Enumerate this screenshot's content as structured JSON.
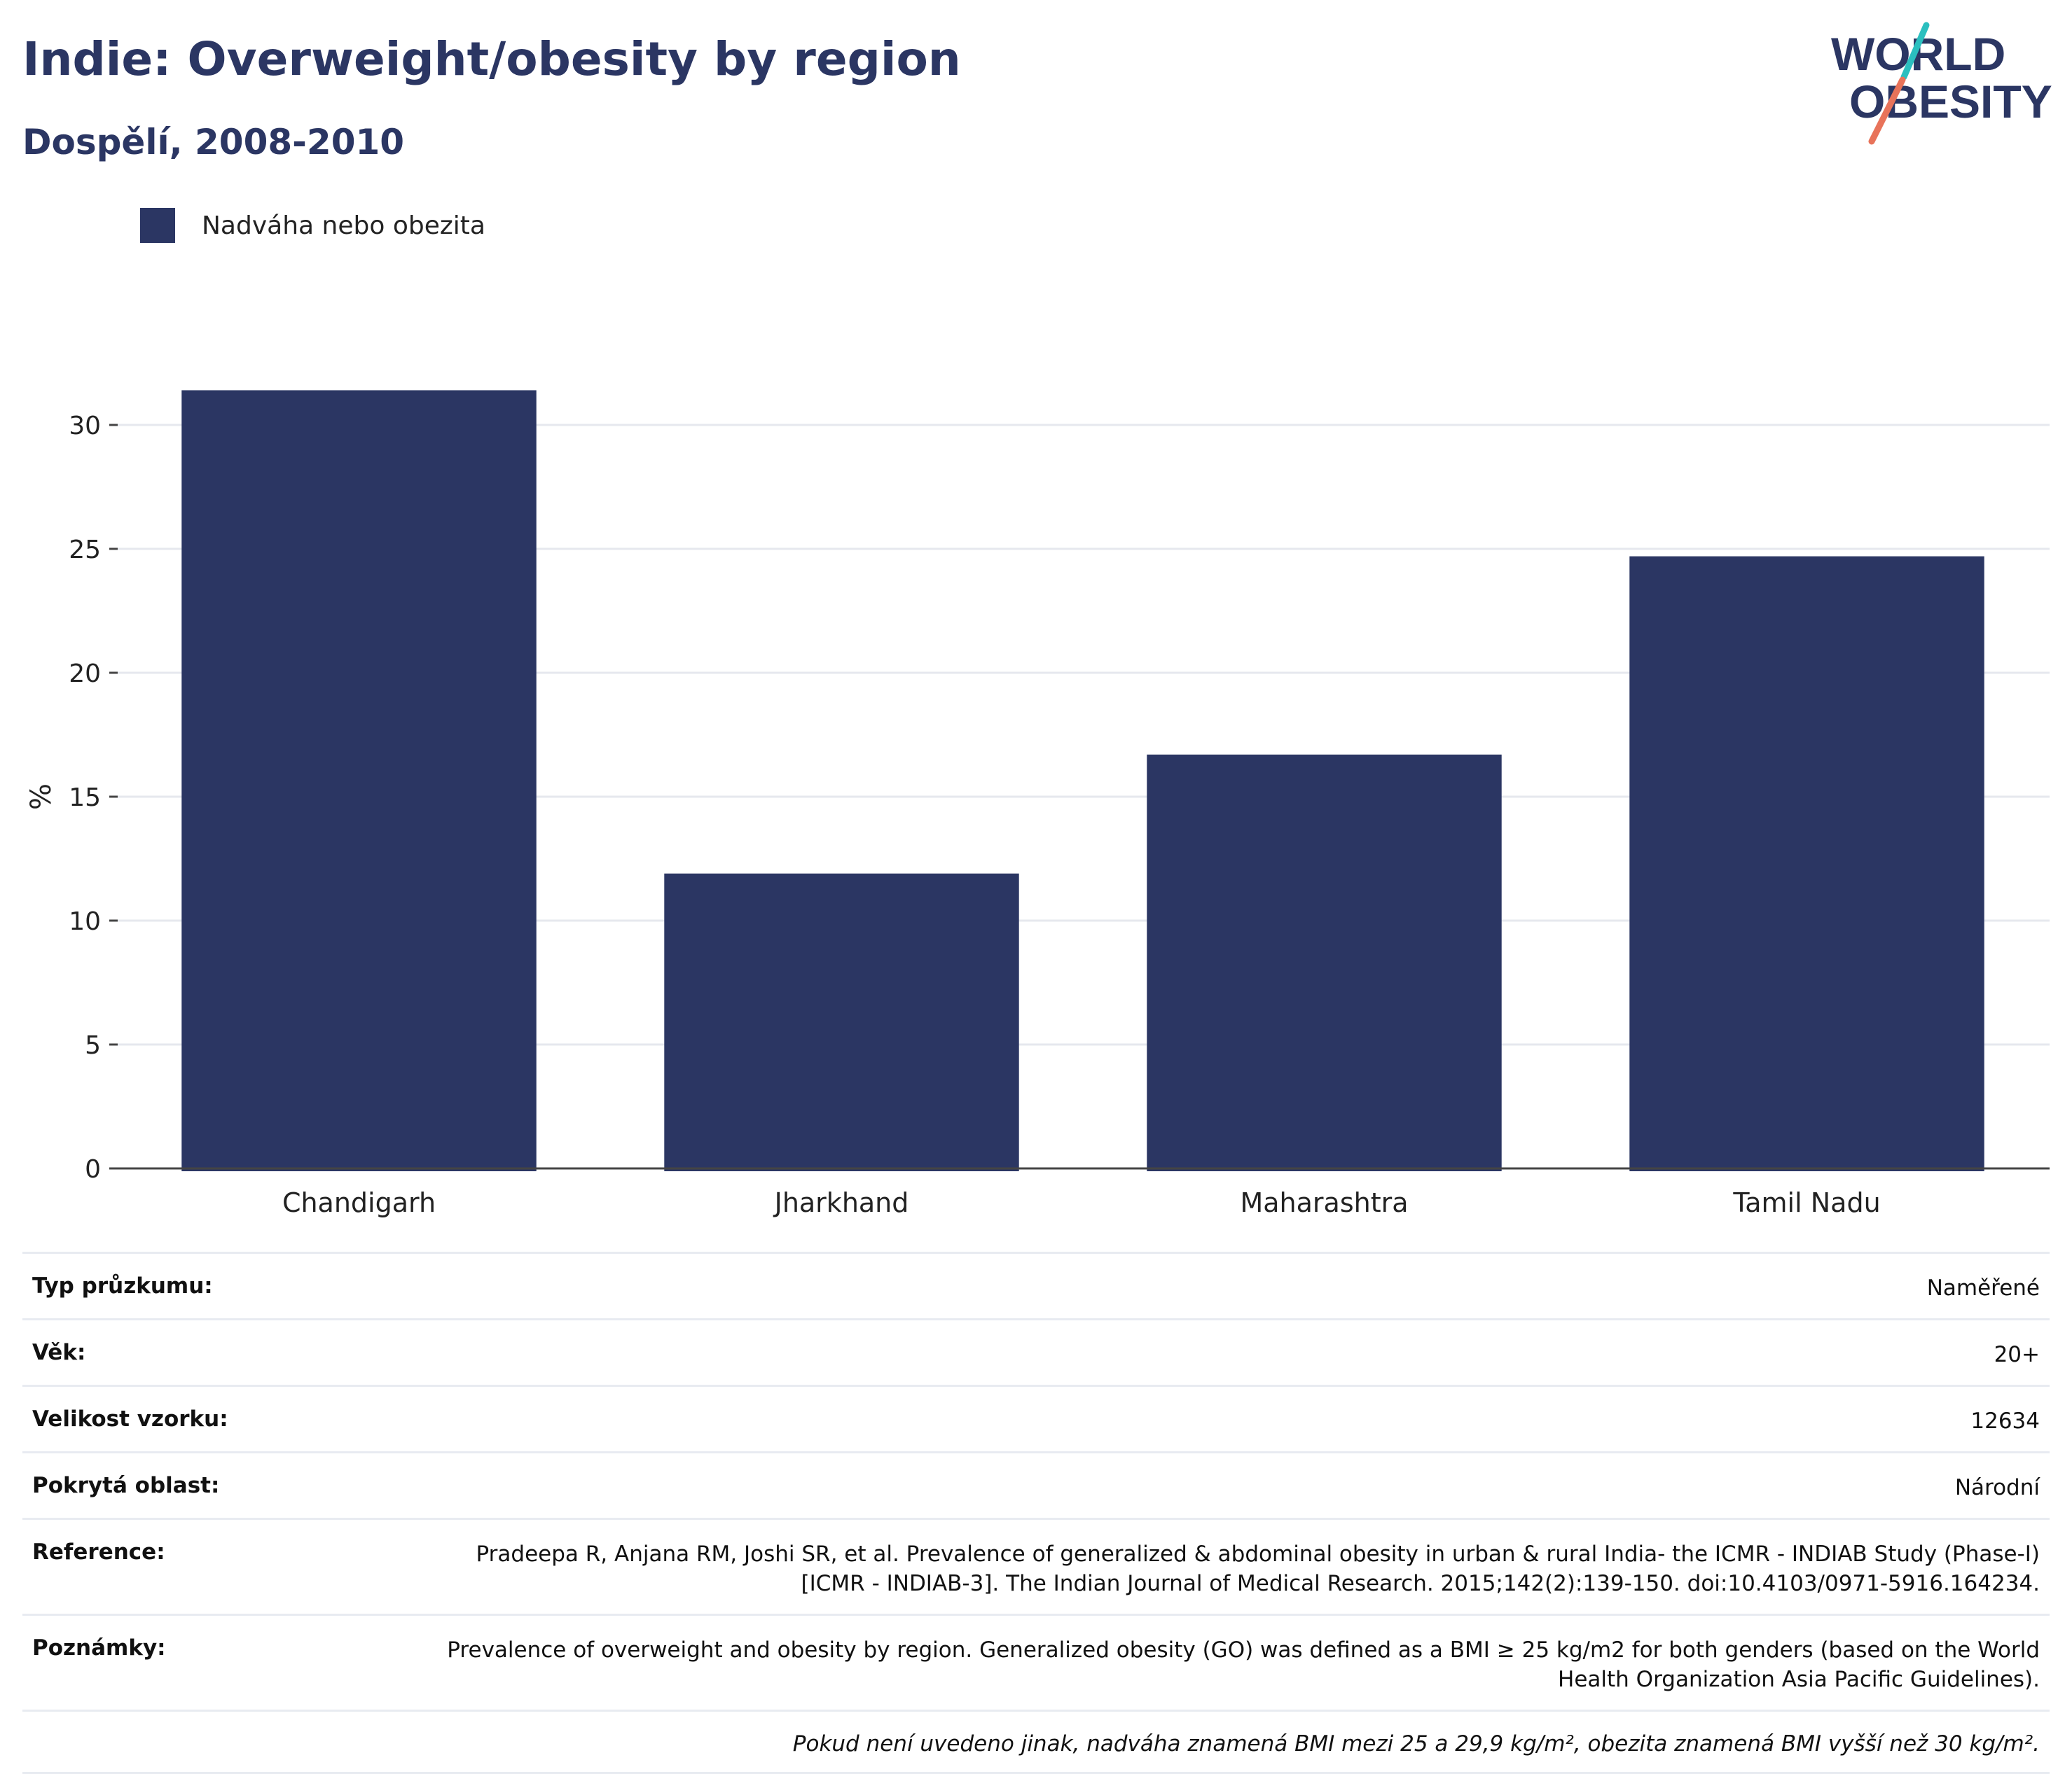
{
  "header": {
    "title": "Indie: Overweight/obesity by region",
    "subtitle": "Dospělí, 2008-2010"
  },
  "logo": {
    "line1": "WORLD",
    "line2": "OBESITY",
    "colors": {
      "text": "#2b3663",
      "teal": "#2bbfbf",
      "coral": "#e8735a"
    }
  },
  "chart_data": {
    "type": "bar",
    "categories": [
      "Chandigarh",
      "Jharkhand",
      "Maharashtra",
      "Tamil Nadu"
    ],
    "series": [
      {
        "name": "Nadváha nebo obezita",
        "values": [
          31.4,
          11.9,
          16.7,
          24.7
        ],
        "color": "#2b3663"
      }
    ],
    "ylabel": "%",
    "ylim": [
      0,
      33
    ],
    "yticks": [
      0,
      5,
      10,
      15,
      20,
      25,
      30
    ],
    "grid": true,
    "legend_position": "top-left"
  },
  "info": {
    "rows": [
      {
        "label": "Typ průzkumu:",
        "value": "Naměřené"
      },
      {
        "label": "Věk:",
        "value": "20+"
      },
      {
        "label": "Velikost vzorku:",
        "value": "12634"
      },
      {
        "label": "Pokrytá oblast:",
        "value": "Národní"
      },
      {
        "label": "Reference:",
        "value": "Pradeepa R, Anjana RM, Joshi SR, et al. Prevalence of generalized & abdominal obesity in urban & rural India- the ICMR - INDIAB Study (Phase-I) [ICMR - INDIAB-3]. The Indian Journal of Medical Research. 2015;142(2):139-150. doi:10.4103/0971-5916.164234."
      },
      {
        "label": "Poznámky:",
        "value": "Prevalence of overweight and obesity by region. Generalized obesity (GO) was defined as a BMI ≥ 25 kg/m2 for both genders (based on the World Health Organization Asia Pacific Guidelines)."
      }
    ],
    "footnote": "Pokud není uvedeno jinak, nadváha znamená BMI mezi 25 a 29,9 kg/m², obezita znamená BMI vyšší než 30 kg/m²."
  }
}
